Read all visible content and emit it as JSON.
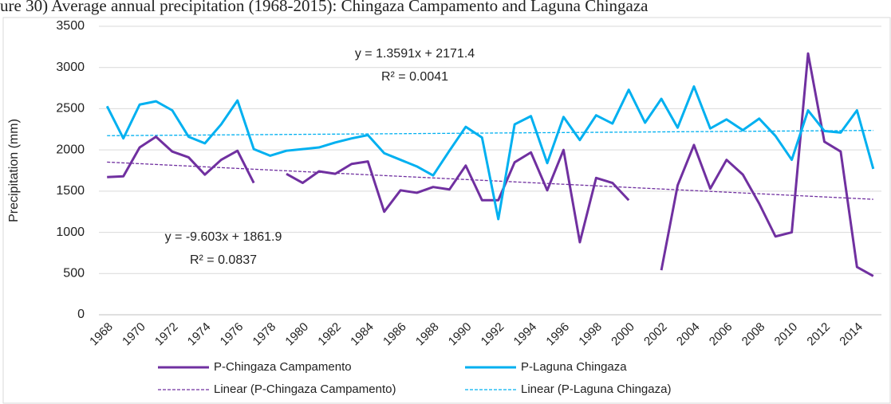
{
  "chart_data": {
    "type": "line",
    "title": "ure 30) Average annual precipitation (1968-2015): Chingaza Campamento and Laguna Chingaza",
    "y_label": "Precipitation (mm)",
    "categories": [
      "1968",
      null,
      "1970",
      null,
      "1972",
      null,
      "1974",
      null,
      "1976",
      null,
      "1978",
      null,
      "1980",
      null,
      "1982",
      null,
      "1984",
      null,
      "1986",
      null,
      "1988",
      null,
      "1990",
      null,
      "1992",
      null,
      "1994",
      null,
      "1996",
      null,
      "1998",
      null,
      "2000",
      null,
      "2002",
      null,
      "2004",
      null,
      "2006",
      null,
      "2008",
      null,
      "2010",
      null,
      "2012",
      null,
      "2014",
      null
    ],
    "series": [
      {
        "name": "P-Chingaza Campamento",
        "color": "#7030a0",
        "values": [
          1670,
          1680,
          2030,
          2160,
          1980,
          1910,
          1700,
          1880,
          1990,
          1600,
          null,
          1710,
          1600,
          1740,
          1710,
          1830,
          1860,
          1250,
          1510,
          1480,
          1550,
          1520,
          1810,
          1390,
          1390,
          1850,
          1970,
          1510,
          2000,
          880,
          1660,
          1600,
          1390,
          null,
          540,
          1570,
          2060,
          1530,
          1880,
          1700,
          1350,
          950,
          1000,
          3170,
          2100,
          1980,
          580,
          470
        ]
      },
      {
        "name": "P-Laguna Chingaza",
        "color": "#00b0f0",
        "values": [
          2530,
          2140,
          2550,
          2590,
          2480,
          2160,
          2080,
          2310,
          2600,
          2010,
          1930,
          1990,
          2010,
          2030,
          2090,
          2140,
          2180,
          1960,
          1880,
          1800,
          1690,
          1990,
          2280,
          2150,
          1160,
          2310,
          2410,
          1840,
          2400,
          2120,
          2420,
          2320,
          2730,
          2330,
          2620,
          2270,
          2770,
          2260,
          2370,
          2240,
          2380,
          2170,
          1880,
          2480,
          2230,
          2210,
          2480,
          1770
        ]
      }
    ],
    "trendlines": [
      {
        "name": "Linear (P-Chingaza Campamento)",
        "color": "#7030a0",
        "slope": -9.603,
        "intercept": 1861.9,
        "equation": "y = -9.603x + 1861.9",
        "r2": "R² = 0.0837"
      },
      {
        "name": "Linear (P-Laguna Chingaza)",
        "color": "#00b0f0",
        "slope": 1.3591,
        "intercept": 2171.4,
        "equation": "y = 1.3591x + 2171.4",
        "r2": "R² = 0.0041"
      }
    ],
    "ylim": [
      0,
      3500
    ],
    "yticks": [
      0,
      500,
      1000,
      1500,
      2000,
      2500,
      3000,
      3500
    ],
    "grid": true
  }
}
